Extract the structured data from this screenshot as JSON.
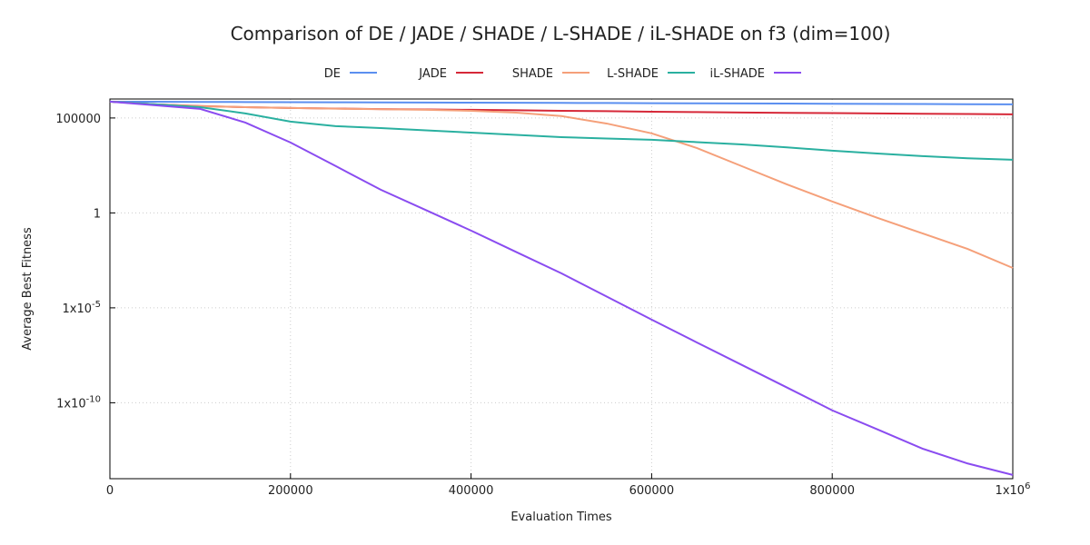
{
  "chart_data": {
    "type": "line",
    "title": "Comparison of DE / JADE / SHADE / L-SHADE / iL-SHADE on f3 (dim=100)",
    "xlabel": "Evaluation Times",
    "ylabel": "Average Best Fitness",
    "log_y": true,
    "grid": true,
    "legend": "top",
    "x": [
      0,
      50000,
      100000,
      150000,
      200000,
      250000,
      300000,
      350000,
      400000,
      450000,
      500000,
      550000,
      600000,
      650000,
      700000,
      750000,
      800000,
      850000,
      900000,
      950000,
      1000000
    ],
    "xlim": [
      0,
      1000000
    ],
    "xticks": [
      0,
      200000,
      400000,
      600000,
      800000,
      {
        "value": 1000000,
        "label": "1x10",
        "exponent": "6"
      }
    ],
    "ylim": [
      1e-14,
      1000000
    ],
    "yticks": [
      {
        "value": 1e-10,
        "label": "1x10",
        "exponent": "-10"
      },
      {
        "value": 1e-05,
        "label": "1x10",
        "exponent": "-5"
      },
      1,
      100000
    ],
    "series": [
      {
        "name": "DE",
        "color": "#5b8ff0",
        "values": [
          724000,
          714000,
          704000,
          694000,
          684000,
          674000,
          664000,
          654000,
          644000,
          634000,
          624000,
          614000,
          604000,
          594000,
          584000,
          574000,
          564000,
          554000,
          544000,
          534000,
          524000
        ]
      },
      {
        "name": "JADE",
        "color": "#d62838",
        "values": [
          724000,
          525000,
          427000,
          372000,
          339000,
          316000,
          295000,
          282000,
          269000,
          257000,
          240000,
          229000,
          214000,
          204000,
          195000,
          186000,
          182000,
          174000,
          166000,
          162000,
          155000
        ]
      },
      {
        "name": "SHADE",
        "color": "#f5a07a",
        "values": [
          724000,
          525000,
          417000,
          372000,
          339000,
          309000,
          288000,
          269000,
          240000,
          191000,
          126000,
          51300,
          15500,
          2630,
          288,
          31.6,
          3.98,
          0.55,
          0.0832,
          0.0126,
          0.00126
        ]
      },
      {
        "name": "L-SHADE",
        "color": "#2ab0a0",
        "values": [
          724000,
          525000,
          372000,
          174000,
          64600,
          37200,
          29500,
          22400,
          17000,
          12900,
          9770,
          8320,
          7080,
          5370,
          4070,
          2820,
          1910,
          1350,
          977,
          759,
          631
        ]
      },
      {
        "name": "iL-SHADE",
        "color": "#8a4cf0",
        "values": [
          724000,
          468000,
          302000,
          57500,
          5130,
          295,
          16.6,
          1.41,
          0.117,
          0.0087,
          0.00066,
          3.98e-05,
          2.4e-06,
          1.51e-07,
          9.77e-09,
          6.31e-10,
          3.98e-11,
          3.98e-12,
          3.8e-13,
          6.31e-14,
          1.58e-14
        ]
      }
    ]
  }
}
